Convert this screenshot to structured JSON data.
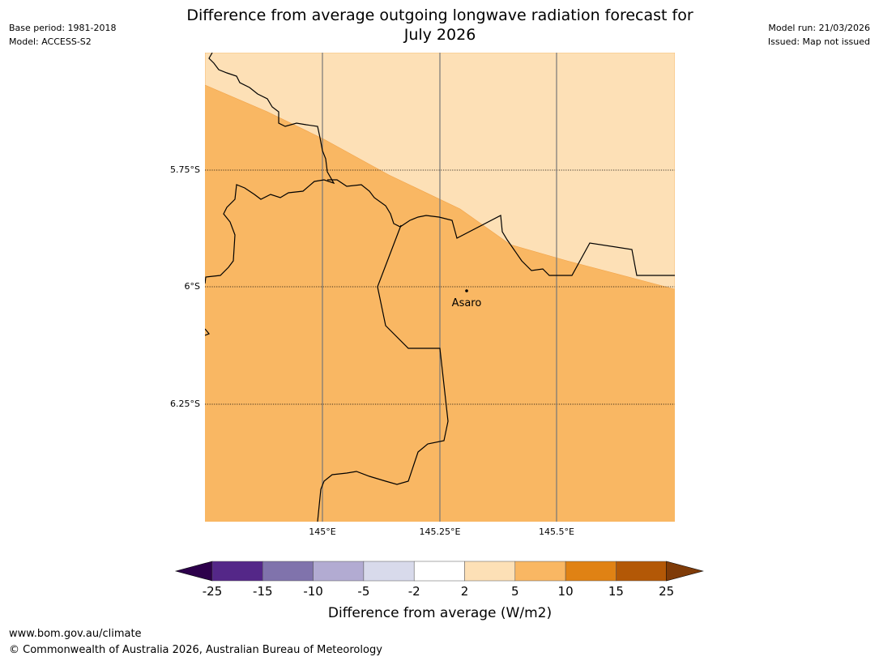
{
  "header": {
    "title_line1": "Difference from average outgoing longwave radiation forecast for",
    "title_line2": "July 2026",
    "base_period": "Base period: 1981-2018",
    "model": "Model: ACCESS-S2",
    "model_run": "Model run: 21/03/2026",
    "issued": "Issued: Map not issued"
  },
  "map": {
    "lat_labels": [
      "5.75°S",
      "6°S",
      "6.25°S"
    ],
    "lon_labels": [
      "145°E",
      "145.25°E",
      "145.5°E"
    ],
    "place": "Asaro",
    "colors": {
      "band_2_5": "#fde0b6",
      "band_5_10": "#f9b763",
      "border": "#000000",
      "grid": "#777777"
    }
  },
  "legend": {
    "label": "Difference from average (W/m2)",
    "ticks": [
      "-25",
      "-15",
      "-10",
      "-5",
      "-2",
      "2",
      "5",
      "10",
      "15",
      "25"
    ],
    "colors": [
      "#2d004b",
      "#542788",
      "#8073ac",
      "#b2abd2",
      "#d8daeb",
      "#ffffff",
      "#fde0b6",
      "#f9b763",
      "#e08214",
      "#b35806",
      "#7f3b08"
    ]
  },
  "footer": {
    "url": "www.bom.gov.au/climate",
    "copyright": "© Commonwealth of Australia 2026, Australian Bureau of Meteorology"
  }
}
